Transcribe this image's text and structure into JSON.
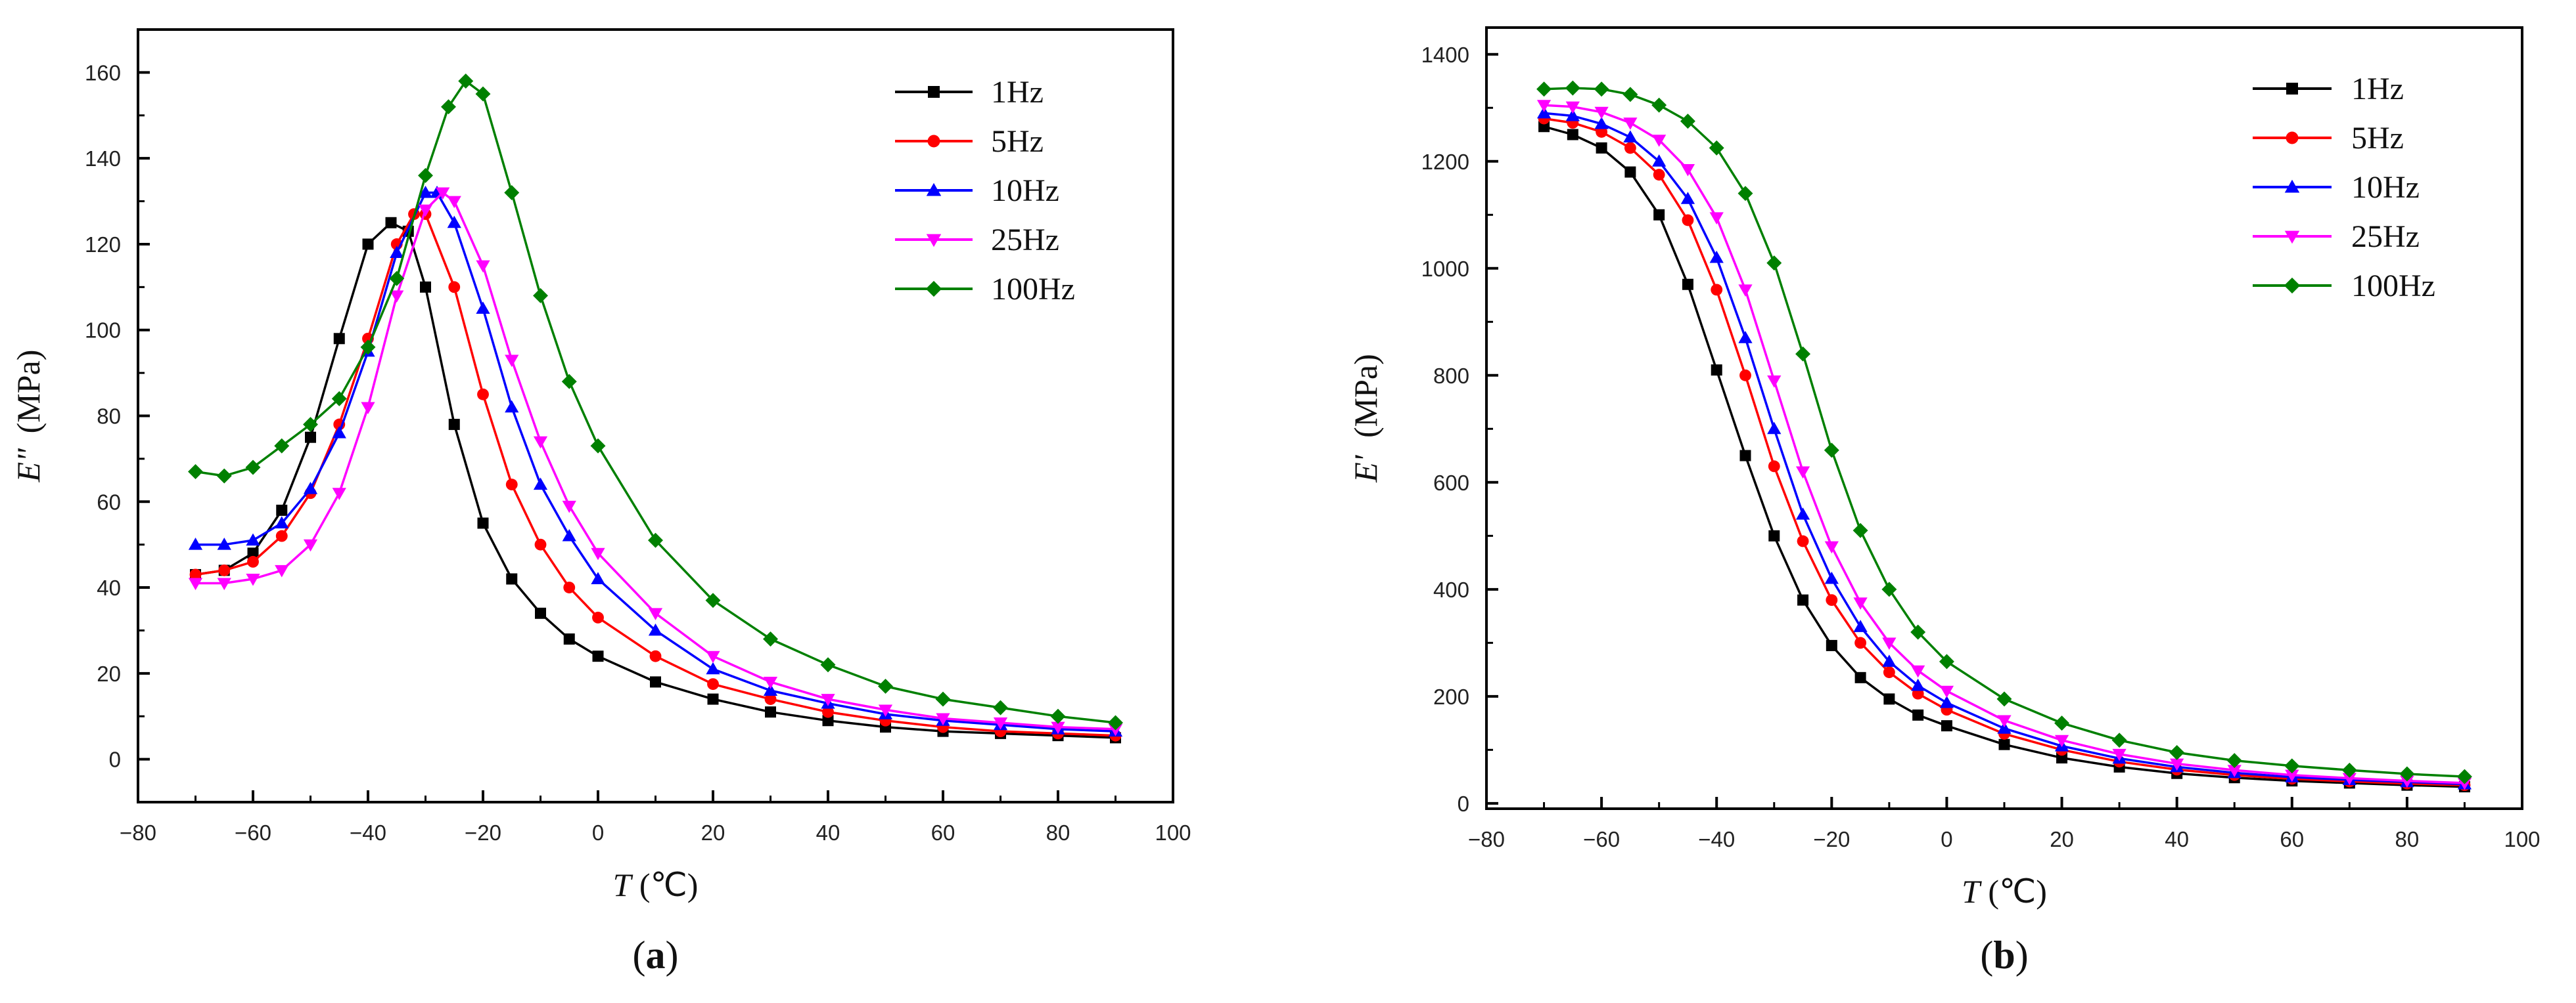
{
  "colors": {
    "1Hz": "#000000",
    "5Hz": "#ff0000",
    "10Hz": "#0000ff",
    "25Hz": "#ff00ff",
    "100Hz": "#008000"
  },
  "chart_data": [
    {
      "id": "a",
      "type": "line",
      "panel_label": "a",
      "xlabel_var": "T",
      "xlabel_unit": "(℃)",
      "ylabel_var": "E\"",
      "ylabel_unit": "(MPa)",
      "xlim": [
        -80,
        100
      ],
      "ylim": [
        -10,
        170
      ],
      "xticks": [
        -80,
        -60,
        -40,
        -20,
        0,
        20,
        40,
        60,
        80,
        100
      ],
      "xtick_labels": [
        "−80",
        "−60",
        "−40",
        "−20",
        "0",
        "20",
        "40",
        "60",
        "80",
        "100"
      ],
      "yticks": [
        0,
        20,
        40,
        60,
        80,
        100,
        120,
        140,
        160
      ],
      "ytick_labels": [
        "0",
        "20",
        "40",
        "60",
        "80",
        "100",
        "120",
        "140",
        "160"
      ],
      "legend_position": "top-right",
      "series": [
        {
          "name": "1Hz",
          "marker": "square",
          "color": "#000000",
          "x": [
            -70,
            -65,
            -60,
            -55,
            -50,
            -45,
            -40,
            -36,
            -33,
            -30,
            -25,
            -20,
            -15,
            -10,
            -5,
            0,
            10,
            20,
            30,
            40,
            50,
            60,
            70,
            80,
            90
          ],
          "y": [
            43,
            44,
            48,
            58,
            75,
            98,
            120,
            125,
            123,
            110,
            78,
            55,
            42,
            34,
            28,
            24,
            18,
            14,
            11,
            9,
            7.5,
            6.5,
            6,
            5.5,
            5
          ]
        },
        {
          "name": "5Hz",
          "marker": "circle",
          "color": "#ff0000",
          "x": [
            -70,
            -65,
            -60,
            -55,
            -50,
            -45,
            -40,
            -35,
            -32,
            -30,
            -25,
            -20,
            -15,
            -10,
            -5,
            0,
            10,
            20,
            30,
            40,
            50,
            60,
            70,
            80,
            90
          ],
          "y": [
            43,
            44,
            46,
            52,
            62,
            78,
            98,
            120,
            127,
            127,
            110,
            85,
            64,
            50,
            40,
            33,
            24,
            17.5,
            14,
            11,
            9,
            7.5,
            6.5,
            6,
            5.5
          ]
        },
        {
          "name": "10Hz",
          "marker": "triangle-up",
          "color": "#0000ff",
          "x": [
            -70,
            -65,
            -60,
            -55,
            -50,
            -45,
            -40,
            -35,
            -30,
            -28,
            -25,
            -20,
            -15,
            -10,
            -5,
            0,
            10,
            20,
            30,
            40,
            50,
            60,
            70,
            80,
            90
          ],
          "y": [
            50,
            50,
            51,
            55,
            63,
            76,
            95,
            118,
            132,
            132,
            125,
            105,
            82,
            64,
            52,
            42,
            30,
            21,
            16,
            13,
            10.5,
            9,
            8,
            7,
            6.5
          ]
        },
        {
          "name": "25Hz",
          "marker": "triangle-down",
          "color": "#ff00ff",
          "x": [
            -70,
            -65,
            -60,
            -55,
            -50,
            -45,
            -40,
            -35,
            -30,
            -27,
            -25,
            -20,
            -15,
            -10,
            -5,
            0,
            10,
            20,
            30,
            40,
            50,
            60,
            70,
            80,
            90
          ],
          "y": [
            41,
            41,
            42,
            44,
            50,
            62,
            82,
            108,
            128,
            132,
            130,
            115,
            93,
            74,
            59,
            48,
            34,
            24,
            18,
            14,
            11.5,
            9.5,
            8.5,
            7.5,
            7
          ]
        },
        {
          "name": "100Hz",
          "marker": "diamond",
          "color": "#008000",
          "x": [
            -70,
            -65,
            -60,
            -55,
            -50,
            -45,
            -40,
            -35,
            -30,
            -26,
            -23,
            -20,
            -15,
            -10,
            -5,
            0,
            10,
            20,
            30,
            40,
            50,
            60,
            70,
            80,
            90
          ],
          "y": [
            67,
            66,
            68,
            73,
            78,
            84,
            96,
            112,
            136,
            152,
            158,
            155,
            132,
            108,
            88,
            73,
            51,
            37,
            28,
            22,
            17,
            14,
            12,
            10,
            8.5
          ]
        }
      ]
    },
    {
      "id": "b",
      "type": "line",
      "panel_label": "b",
      "xlabel_var": "T",
      "xlabel_unit": "(℃)",
      "ylabel_var": "E'",
      "ylabel_unit": "(MPa)",
      "xlim": [
        -80,
        100
      ],
      "ylim": [
        -10,
        1450
      ],
      "xticks": [
        -80,
        -60,
        -40,
        -20,
        0,
        20,
        40,
        60,
        80,
        100
      ],
      "xtick_labels": [
        "−80",
        "−60",
        "−40",
        "−20",
        "0",
        "20",
        "40",
        "60",
        "80",
        "100"
      ],
      "yticks": [
        0,
        200,
        400,
        600,
        800,
        1000,
        1200,
        1400
      ],
      "ytick_labels": [
        "0",
        "200",
        "400",
        "600",
        "800",
        "1000",
        "1200",
        "1400"
      ],
      "legend_position": "top-right",
      "series": [
        {
          "name": "1Hz",
          "marker": "square",
          "color": "#000000",
          "x": [
            -70,
            -65,
            -60,
            -55,
            -50,
            -45,
            -40,
            -35,
            -30,
            -25,
            -20,
            -15,
            -10,
            -5,
            0,
            10,
            20,
            30,
            40,
            50,
            60,
            70,
            80,
            90
          ],
          "y": [
            1265,
            1250,
            1225,
            1180,
            1100,
            970,
            810,
            650,
            500,
            380,
            295,
            235,
            195,
            165,
            145,
            110,
            85,
            68,
            56,
            48,
            42,
            38,
            34,
            31
          ]
        },
        {
          "name": "5Hz",
          "marker": "circle",
          "color": "#ff0000",
          "x": [
            -70,
            -65,
            -60,
            -55,
            -50,
            -45,
            -40,
            -35,
            -30,
            -25,
            -20,
            -15,
            -10,
            -5,
            0,
            10,
            20,
            30,
            40,
            50,
            60,
            70,
            80,
            90
          ],
          "y": [
            1280,
            1272,
            1255,
            1225,
            1175,
            1090,
            960,
            800,
            630,
            490,
            380,
            300,
            245,
            205,
            175,
            130,
            100,
            78,
            63,
            53,
            46,
            41,
            37,
            34
          ]
        },
        {
          "name": "10Hz",
          "marker": "triangle-up",
          "color": "#0000ff",
          "x": [
            -70,
            -65,
            -60,
            -55,
            -50,
            -45,
            -40,
            -35,
            -30,
            -25,
            -20,
            -15,
            -10,
            -5,
            0,
            10,
            20,
            30,
            40,
            50,
            60,
            70,
            80,
            90
          ],
          "y": [
            1290,
            1285,
            1270,
            1245,
            1200,
            1130,
            1020,
            870,
            700,
            540,
            420,
            330,
            265,
            220,
            188,
            140,
            107,
            84,
            68,
            57,
            49,
            44,
            40,
            36
          ]
        },
        {
          "name": "25Hz",
          "marker": "triangle-down",
          "color": "#ff00ff",
          "x": [
            -70,
            -65,
            -60,
            -55,
            -50,
            -45,
            -40,
            -35,
            -30,
            -25,
            -20,
            -15,
            -10,
            -5,
            0,
            10,
            20,
            30,
            40,
            50,
            60,
            70,
            80,
            90
          ],
          "y": [
            1305,
            1302,
            1292,
            1272,
            1240,
            1185,
            1095,
            960,
            790,
            620,
            480,
            375,
            300,
            248,
            210,
            155,
            118,
            92,
            74,
            62,
            53,
            47,
            42,
            38
          ]
        },
        {
          "name": "100Hz",
          "marker": "diamond",
          "color": "#008000",
          "x": [
            -70,
            -65,
            -60,
            -55,
            -50,
            -45,
            -40,
            -35,
            -30,
            -25,
            -20,
            -15,
            -10,
            -5,
            0,
            10,
            20,
            30,
            40,
            50,
            60,
            70,
            80,
            90
          ],
          "y": [
            1335,
            1337,
            1335,
            1325,
            1305,
            1275,
            1225,
            1140,
            1010,
            840,
            660,
            510,
            400,
            320,
            265,
            195,
            150,
            118,
            95,
            80,
            70,
            62,
            55,
            50
          ]
        }
      ]
    }
  ]
}
